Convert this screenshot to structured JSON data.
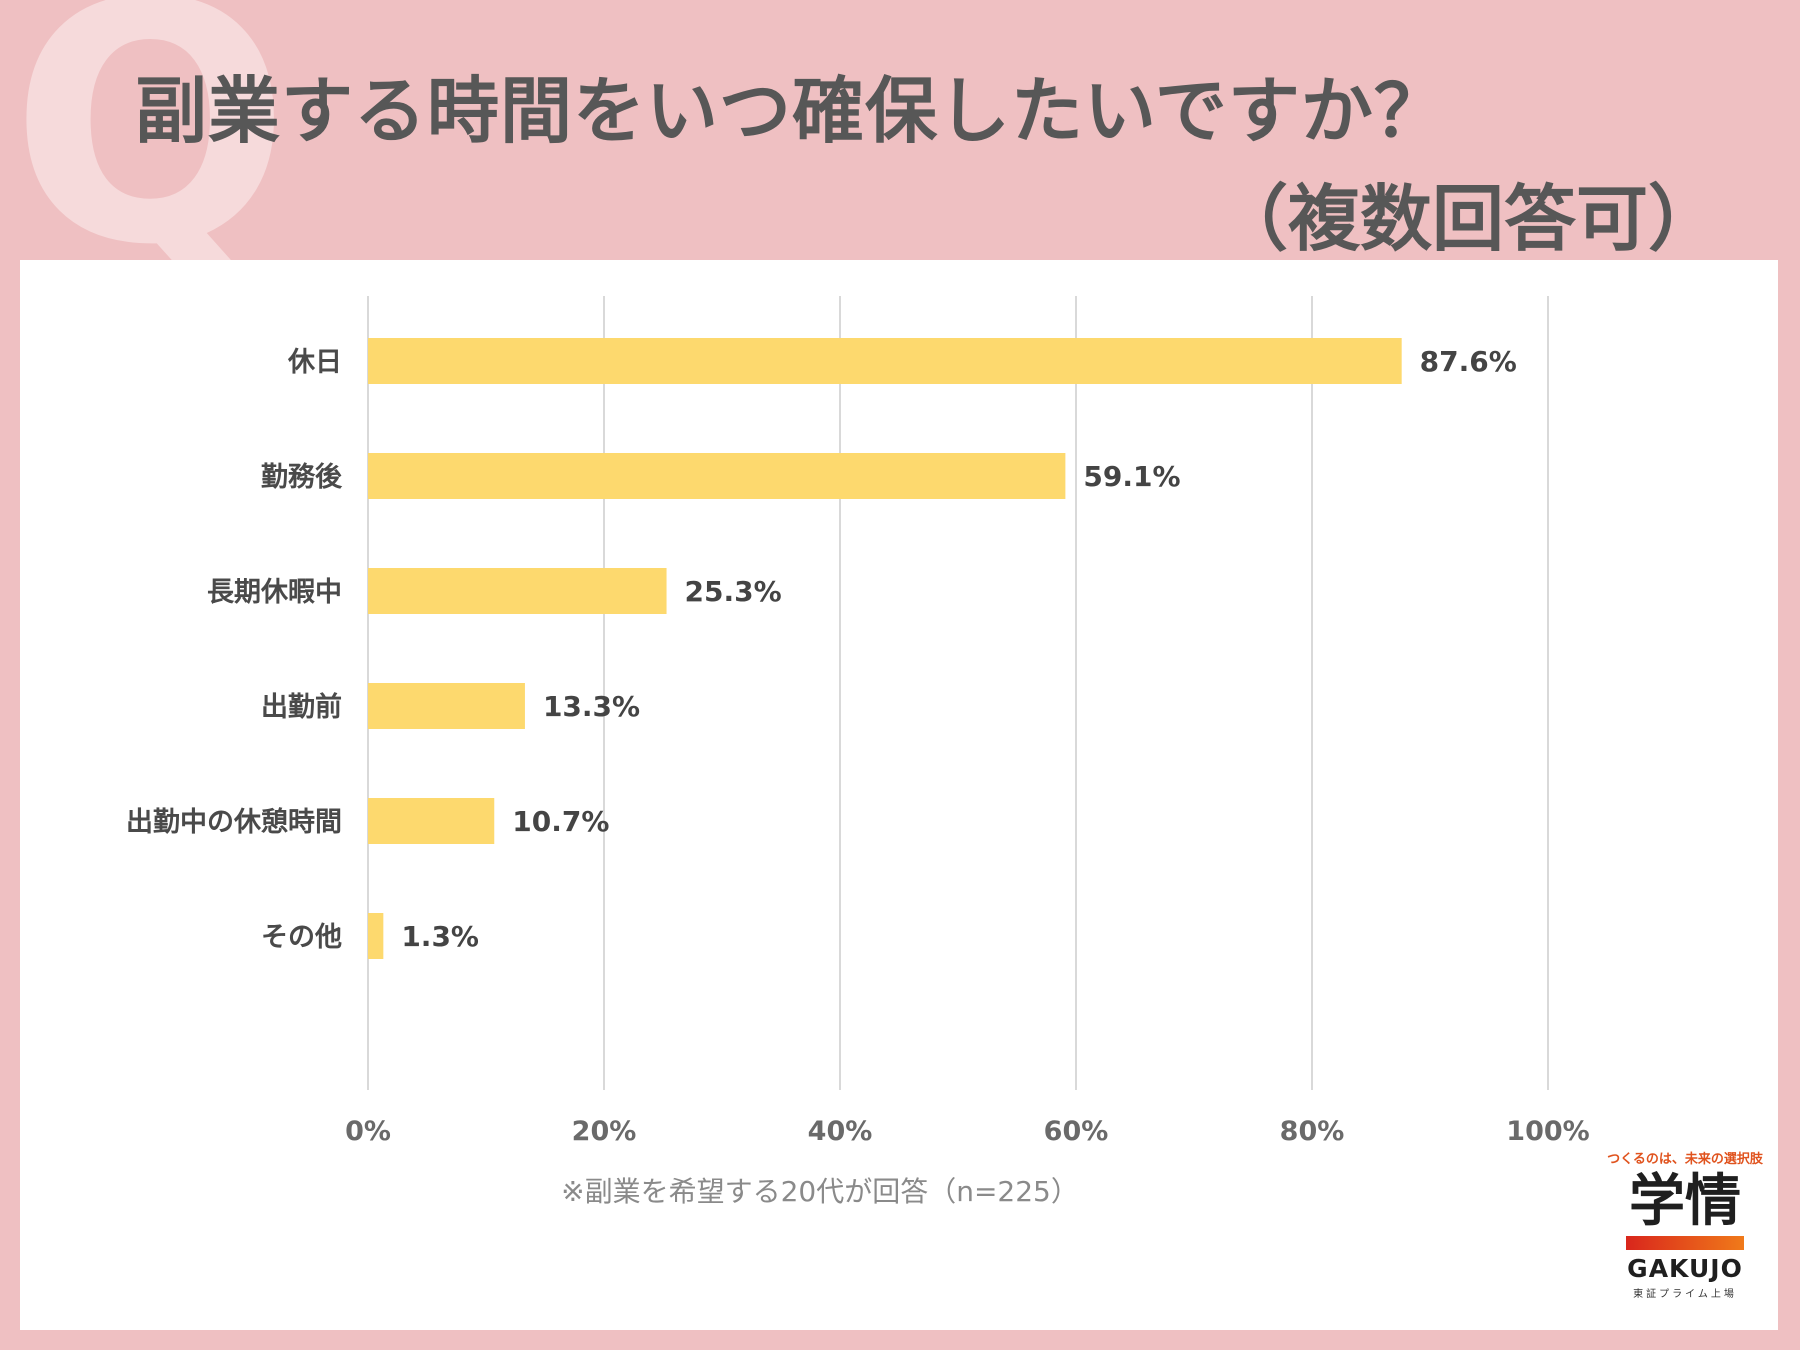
{
  "header": {
    "q_mark": "Q",
    "title_line1": "副業する時間をいつ確保したいですか？",
    "title_line2": "（複数回答可）"
  },
  "chart_data": {
    "type": "bar",
    "orientation": "horizontal",
    "categories": [
      "休日",
      "勤務後",
      "長期休暇中",
      "出勤前",
      "出勤中の休憩時間",
      "その他"
    ],
    "values": [
      87.6,
      59.1,
      25.3,
      13.3,
      10.7,
      1.3
    ],
    "value_labels": [
      "87.6%",
      "59.1%",
      "25.3%",
      "13.3%",
      "10.7%",
      "1.3%"
    ],
    "xlim": [
      0,
      100
    ],
    "xticks": [
      0,
      20,
      40,
      60,
      80,
      100
    ],
    "xtick_labels": [
      "0%",
      "20%",
      "40%",
      "60%",
      "80%",
      "100%"
    ],
    "grid": true,
    "bar_color": "#fdd96e",
    "note": "※副業を希望する20代が回答（n=225）"
  },
  "logo": {
    "tagline": "つくるのは、未来の選択肢",
    "main": "学情",
    "sub": "GAKUJO",
    "exchange": "東証プライム上場"
  }
}
